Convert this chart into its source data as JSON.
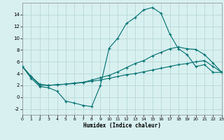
{
  "xlabel": "Humidex (Indice chaleur)",
  "bg_color": "#d8f0f0",
  "grid_color": "#b8d8d8",
  "line_color": "#007070",
  "xlim": [
    0,
    23
  ],
  "ylim": [
    -3,
    16
  ],
  "xticks": [
    0,
    1,
    2,
    3,
    4,
    5,
    6,
    7,
    8,
    9,
    10,
    11,
    12,
    13,
    14,
    15,
    16,
    17,
    18,
    19,
    20,
    21,
    22,
    23
  ],
  "yticks": [
    -2,
    0,
    2,
    4,
    6,
    8,
    10,
    12,
    14
  ],
  "curve1_x": [
    0,
    1,
    2,
    3,
    4,
    5,
    6,
    7,
    8,
    9,
    10,
    11,
    12,
    13,
    14,
    15,
    16,
    17,
    18,
    19,
    20,
    21,
    22,
    23
  ],
  "curve1_y": [
    5.2,
    3.2,
    1.8,
    1.6,
    1.0,
    -0.7,
    -1.0,
    -1.4,
    -1.6,
    2.0,
    8.3,
    10.0,
    12.5,
    13.5,
    14.8,
    15.2,
    14.2,
    10.7,
    8.2,
    7.2,
    5.2,
    5.5,
    4.2,
    4.2
  ],
  "curve2_x": [
    0,
    1,
    2,
    3,
    4,
    5,
    6,
    7,
    8,
    9,
    10,
    11,
    12,
    13,
    14,
    15,
    16,
    17,
    18,
    19,
    20,
    21,
    22,
    23
  ],
  "curve2_y": [
    5.2,
    3.5,
    2.2,
    2.0,
    2.1,
    2.2,
    2.3,
    2.5,
    2.9,
    3.3,
    3.7,
    4.3,
    5.0,
    5.7,
    6.2,
    7.0,
    7.6,
    8.2,
    8.5,
    8.2,
    8.1,
    7.2,
    5.8,
    4.2
  ],
  "curve3_x": [
    0,
    1,
    2,
    3,
    4,
    5,
    6,
    7,
    8,
    9,
    10,
    11,
    12,
    13,
    14,
    15,
    16,
    17,
    18,
    19,
    20,
    21,
    22,
    23
  ],
  "curve3_y": [
    5.2,
    3.5,
    2.0,
    2.0,
    2.1,
    2.2,
    2.4,
    2.5,
    2.7,
    2.9,
    3.2,
    3.5,
    3.8,
    4.0,
    4.3,
    4.6,
    4.9,
    5.2,
    5.5,
    5.7,
    6.0,
    6.2,
    5.2,
    4.2
  ]
}
